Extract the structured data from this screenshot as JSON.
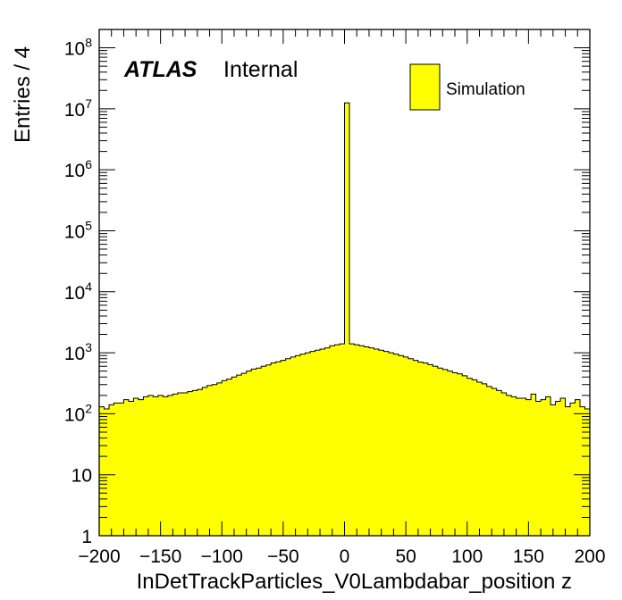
{
  "chart_data": {
    "type": "bar",
    "xlabel": "InDetTrackParticles_V0Lambdabar_position z",
    "ylabel": "Entries / 4",
    "xlim": [
      -200,
      200
    ],
    "ylim": [
      1,
      200000000
    ],
    "yscale": "log",
    "bin_width": 4,
    "fill_color": "#ffff00",
    "edge_color": "#000000",
    "label_main": "ATLAS",
    "label_sub": "Internal",
    "legend": [
      "Simulation"
    ],
    "legend_position": "top-right",
    "x_tick_labels": [
      "−200",
      "−150",
      "−100",
      "−50",
      "0",
      "50",
      "100",
      "150",
      "200"
    ],
    "x_tick_values": [
      -200,
      -150,
      -100,
      -50,
      0,
      50,
      100,
      150,
      200
    ],
    "y_tick_labels": [
      "1",
      "10",
      "10^2",
      "10^3",
      "10^4",
      "10^5",
      "10^6",
      "10^7",
      "10^8"
    ],
    "y_tick_values": [
      1,
      10,
      100,
      1000,
      10000,
      100000,
      1000000,
      10000000,
      100000000
    ],
    "x": [
      -198,
      -194,
      -190,
      -186,
      -182,
      -178,
      -174,
      -170,
      -166,
      -162,
      -158,
      -154,
      -150,
      -146,
      -142,
      -138,
      -134,
      -130,
      -126,
      -122,
      -118,
      -114,
      -110,
      -106,
      -102,
      -98,
      -94,
      -90,
      -86,
      -82,
      -78,
      -74,
      -70,
      -66,
      -62,
      -58,
      -54,
      -50,
      -46,
      -42,
      -38,
      -34,
      -30,
      -26,
      -22,
      -18,
      -14,
      -10,
      -6,
      -2,
      2,
      6,
      10,
      14,
      18,
      22,
      26,
      30,
      34,
      38,
      42,
      46,
      50,
      54,
      58,
      62,
      66,
      70,
      74,
      78,
      82,
      86,
      90,
      94,
      98,
      102,
      106,
      110,
      114,
      118,
      122,
      126,
      130,
      134,
      138,
      142,
      146,
      150,
      154,
      158,
      162,
      166,
      170,
      174,
      178,
      182,
      186,
      190,
      194,
      198
    ],
    "values": [
      130,
      120,
      140,
      150,
      150,
      170,
      160,
      180,
      170,
      190,
      200,
      190,
      200,
      190,
      200,
      210,
      220,
      220,
      230,
      240,
      250,
      270,
      290,
      300,
      320,
      350,
      370,
      400,
      430,
      460,
      500,
      540,
      560,
      600,
      630,
      680,
      710,
      750,
      800,
      850,
      900,
      950,
      1000,
      1050,
      1100,
      1150,
      1200,
      1300,
      1350,
      1400,
      12500000,
      1400,
      1350,
      1300,
      1250,
      1200,
      1150,
      1100,
      1050,
      1000,
      950,
      900,
      850,
      800,
      750,
      700,
      680,
      640,
      600,
      560,
      530,
      500,
      470,
      450,
      420,
      380,
      360,
      330,
      310,
      280,
      260,
      240,
      220,
      200,
      190,
      180,
      180,
      170,
      210,
      160,
      170,
      190,
      140,
      160,
      180,
      130,
      150,
      170,
      130,
      120
    ]
  }
}
